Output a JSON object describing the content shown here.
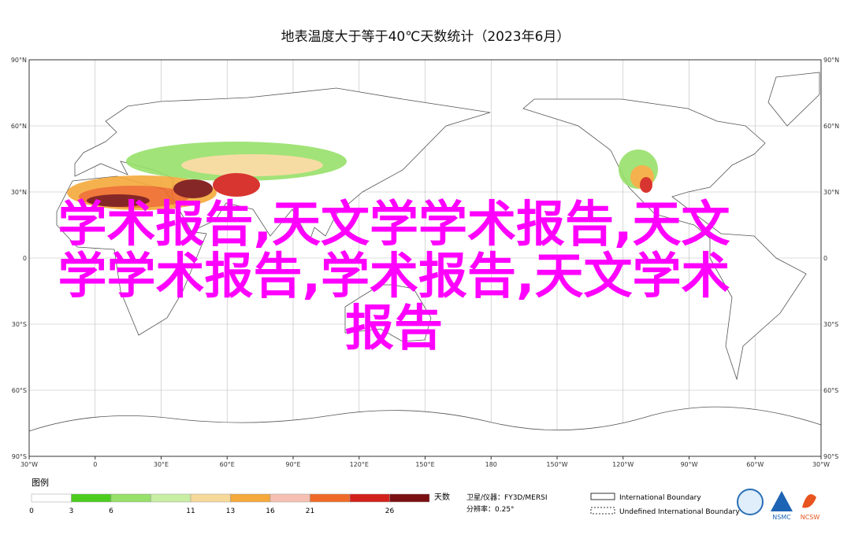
{
  "title": "地表温度大于等于40℃天数统计（2023年6月）",
  "map": {
    "lat_labels": [
      "90°N",
      "60°N",
      "30°N",
      "0",
      "30°S",
      "60°S",
      "90°S"
    ],
    "lon_labels": [
      "30°W",
      "0",
      "30°E",
      "60°E",
      "90°E",
      "120°E",
      "150°E",
      "180",
      "150°W",
      "120°W",
      "90°W",
      "60°W",
      "30°W"
    ]
  },
  "legend": {
    "title": "图例",
    "unit": "天数",
    "colors": [
      "#ffffff",
      "#4ccd1e",
      "#97e06a",
      "#c8eea4",
      "#f6d99a",
      "#f5a93a",
      "#f5c0b2",
      "#ef6a28",
      "#d4201a",
      "#7a1010"
    ],
    "labels": [
      "0",
      "3",
      "6",
      "11",
      "13",
      "16",
      "21",
      "26"
    ]
  },
  "info": {
    "sensor": "卫星/仪器：FY3D/MERSI",
    "resolution": "分辨率：0.25°"
  },
  "boundaries": {
    "international": "International Boundary",
    "undefined": "Undefined International Boundary"
  },
  "logos": [
    "NSMC",
    "NCSW"
  ],
  "overlay": [
    "学术报告,天文学学术报告,天文",
    "学学术报告,学术报告,天文学术",
    "报告"
  ]
}
